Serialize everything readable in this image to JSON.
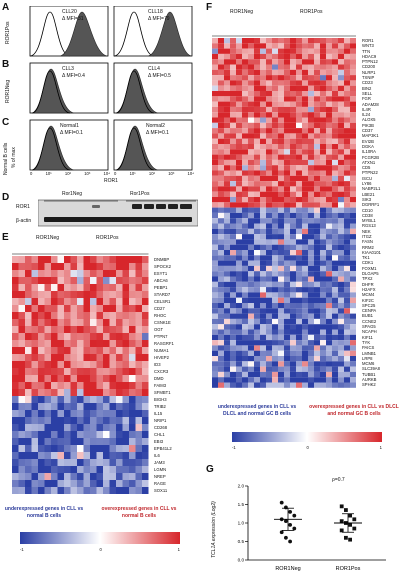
{
  "panels": {
    "A": {
      "label": "A",
      "left": {
        "name": "CLL20",
        "mfi": "Δ MFI=31"
      },
      "right": {
        "name": "CLL18",
        "mfi": "Δ MFI=79"
      },
      "group": "ROR1Pos"
    },
    "B": {
      "label": "B",
      "left": {
        "name": "CLL3",
        "mfi": "Δ MFI=0.4"
      },
      "right": {
        "name": "CLL4",
        "mfi": "Δ MFI=0.5"
      },
      "group": "ROR1Neg"
    },
    "C": {
      "label": "C",
      "left": {
        "name": "Normal1",
        "mfi": "Δ MFI=0.1"
      },
      "right": {
        "name": "Normal2",
        "mfi": "Δ MFI=0.1"
      },
      "group": "Normal B cells"
    },
    "ylabel": "% of max",
    "xlabel": "ROR1",
    "xticks": [
      "0",
      "10¹",
      "10²",
      "10³",
      "10⁴"
    ],
    "yticks": [
      "0",
      "20",
      "40",
      "60",
      "80",
      "100"
    ],
    "D": {
      "label": "D",
      "neg": "Ror1Neg",
      "pos": "Ror1Pos",
      "row1": "ROR1",
      "row2": "β-actin"
    },
    "E": {
      "label": "E",
      "neg": "ROR1Neg",
      "pos": "ROR1Pos",
      "genes": [
        "DNMBP",
        "SPOCK2",
        "ESYT1",
        "ABCA6",
        "PEBP1",
        "STARD7",
        "CELSR1",
        "CD27",
        "RHOC",
        "CSNK1E",
        "OGT",
        "PTPN7",
        "RASGRF1",
        "NUMA1",
        "HIVEP2",
        "ID3",
        "CXCR3",
        "DMD",
        "FAIM3",
        "SFMBT1",
        "BIGH3",
        "TRIB2",
        "IL15",
        "NRIP1",
        "CD268",
        "CHL1",
        "EBI3",
        "EPB41L2",
        "IL6",
        "JAM3",
        "LGMN",
        "NREP",
        "RAGE",
        "SOX11"
      ],
      "legend_under": "underexpressed genes in CLL vs normal B cells",
      "legend_over": "overexpressed genes in CLL vs normal B cells",
      "scale": [
        "-1",
        "0",
        "1"
      ]
    },
    "F": {
      "label": "F",
      "neg": "ROR1Neg",
      "pos": "ROR1Pos",
      "genes": [
        "ROR1",
        "WNT3",
        "TTN",
        "HDAC9",
        "PTPN12",
        "CD200",
        "NLRP1",
        "TXNIP",
        "CD23",
        "BIN2",
        "SELL",
        "FGR",
        "ADAM28",
        "IL4R",
        "IL24",
        "ALOX5",
        "PIK3B",
        "CD37",
        "MAP3K1",
        "EVI2B",
        "DGKA",
        "IL10RA",
        "FCGR2B",
        "ATXN1",
        "CD5",
        "PTPN22",
        "ISCU",
        "LY86",
        "NABP2L1",
        "LBE21",
        "SIK3",
        "DGRRF1",
        "CD10",
        "CD38",
        "MYBL1",
        "RGS13",
        "NEK",
        "ITGZ",
        "FASN",
        "RRM2",
        "KIAA0101",
        "TK1",
        "CDK1",
        "FOXM1",
        "DLGAP5",
        "TPX2",
        "DHFR",
        "H2AFX",
        "MCM4",
        "KIF2C",
        "SPC25",
        "CENPA",
        "BUB1",
        "CCNE2",
        "SPAG5",
        "NCAPH",
        "KIF11",
        "TYK",
        "PAICS",
        "LMNB1",
        "LRP8",
        "MCM6",
        "SLC39A8",
        "TUBB1",
        "AURKB",
        "SPHK2"
      ],
      "legend_under": "underexpressed genes in CLL vs DLCL and normal GC B cells",
      "legend_over": "overexpressed genes in CLL vs DLCL and normal GC B cells",
      "scale": [
        "-1",
        "0",
        "1"
      ]
    },
    "G": {
      "label": "G",
      "ylabel": "TCL1A expression (Log2)",
      "rho": "ρ=0.7",
      "yticks": [
        "0.0",
        "0.5",
        "1.0",
        "1.5",
        "2.0"
      ],
      "groups": [
        "ROR1Neg",
        "ROR1Pos"
      ]
    }
  },
  "chart_data": {
    "type": "scatter",
    "title": "",
    "ylabel": "TCL1A expression (Log2)",
    "ylim": [
      0,
      2.0
    ],
    "categories": [
      "ROR1Neg",
      "ROR1Pos"
    ],
    "series": [
      {
        "values": [
          1.55,
          1.42,
          1.3,
          1.2,
          1.1,
          1.05,
          0.95,
          0.85,
          0.75,
          0.6,
          0.5
        ]
      },
      {
        "values": [
          1.45,
          1.35,
          1.2,
          1.1,
          1.05,
          1.0,
          0.95,
          0.85,
          0.8,
          0.6,
          0.55
        ]
      }
    ],
    "means": [
      1.1,
      1.0
    ],
    "error": [
      0.3,
      0.25
    ]
  }
}
